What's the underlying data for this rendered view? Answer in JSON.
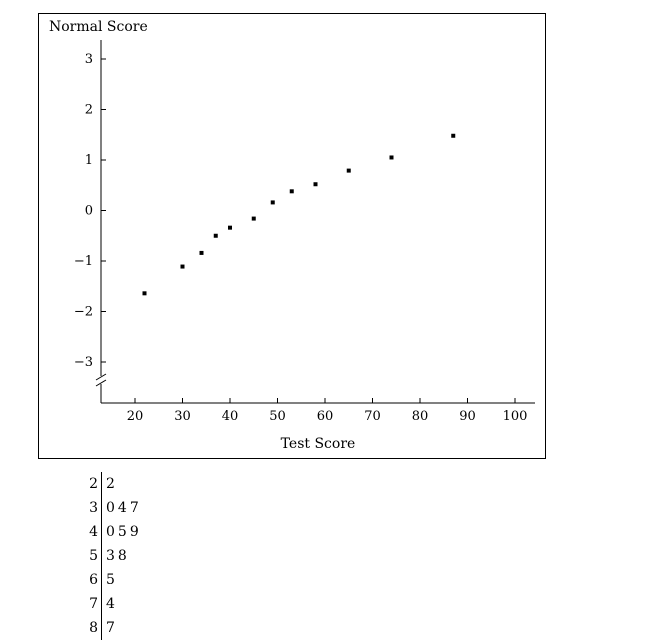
{
  "chart_data": {
    "type": "scatter",
    "title": "",
    "xlabel": "Test Score",
    "ylabel": "Normal Score",
    "xlim": [
      12,
      104
    ],
    "ylim": [
      -3.7,
      3.4
    ],
    "x_ticks": [
      20,
      30,
      40,
      50,
      60,
      70,
      80,
      90,
      100
    ],
    "y_ticks": [
      3,
      2,
      1,
      0,
      -1,
      -2,
      -3
    ],
    "y_tick_labels": [
      "3",
      "2",
      "1",
      "0",
      "−1",
      "−2",
      "−3"
    ],
    "axis_break": true,
    "grid": false,
    "points": [
      {
        "x": 22,
        "y": -1.64
      },
      {
        "x": 30,
        "y": -1.11
      },
      {
        "x": 34,
        "y": -0.84
      },
      {
        "x": 37,
        "y": -0.5
      },
      {
        "x": 40,
        "y": -0.34
      },
      {
        "x": 45,
        "y": -0.16
      },
      {
        "x": 49,
        "y": 0.16
      },
      {
        "x": 53,
        "y": 0.38
      },
      {
        "x": 58,
        "y": 0.52
      },
      {
        "x": 65,
        "y": 0.79
      },
      {
        "x": 74,
        "y": 1.05
      },
      {
        "x": 87,
        "y": 1.48
      }
    ]
  },
  "stem_leaf": [
    {
      "stem": "2",
      "leaves": "2"
    },
    {
      "stem": "3",
      "leaves": "047"
    },
    {
      "stem": "4",
      "leaves": "059"
    },
    {
      "stem": "5",
      "leaves": "38"
    },
    {
      "stem": "6",
      "leaves": "5"
    },
    {
      "stem": "7",
      "leaves": "4"
    },
    {
      "stem": "8",
      "leaves": "7"
    }
  ]
}
